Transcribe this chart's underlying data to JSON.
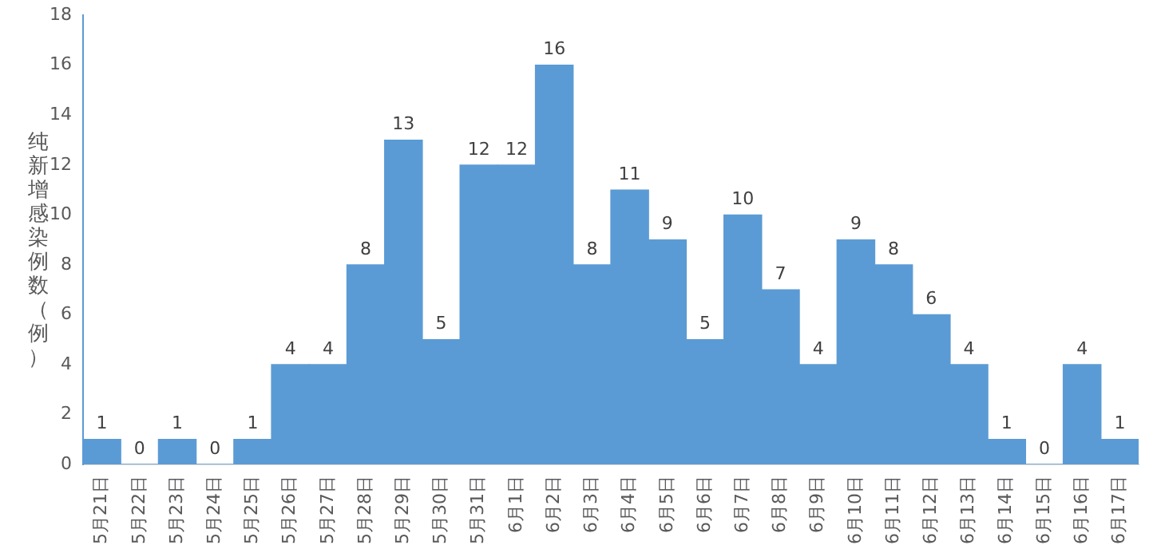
{
  "chart_data": {
    "type": "bar",
    "ylabel": "纯新增感染例数（例）",
    "categories": [
      "5月21日",
      "5月22日",
      "5月23日",
      "5月24日",
      "5月25日",
      "5月26日",
      "5月27日",
      "5月28日",
      "5月29日",
      "5月30日",
      "5月31日",
      "6月1日",
      "6月2日",
      "6月3日",
      "6月4日",
      "6月5日",
      "6月6日",
      "6月7日",
      "6月8日",
      "6月9日",
      "6月10日",
      "6月11日",
      "6月12日",
      "6月13日",
      "6月14日",
      "6月15日",
      "6月16日",
      "6月17日"
    ],
    "values": [
      1,
      0,
      1,
      0,
      1,
      4,
      4,
      8,
      13,
      5,
      12,
      12,
      16,
      8,
      11,
      9,
      5,
      10,
      7,
      4,
      9,
      8,
      6,
      4,
      1,
      0,
      4,
      1
    ],
    "color": "#5b9bd5",
    "ylim": [
      0,
      18
    ],
    "yticks": [
      0,
      2,
      4,
      6,
      8,
      10,
      12,
      14,
      16,
      18
    ],
    "grid": false,
    "legend": false,
    "data_labels": true
  }
}
